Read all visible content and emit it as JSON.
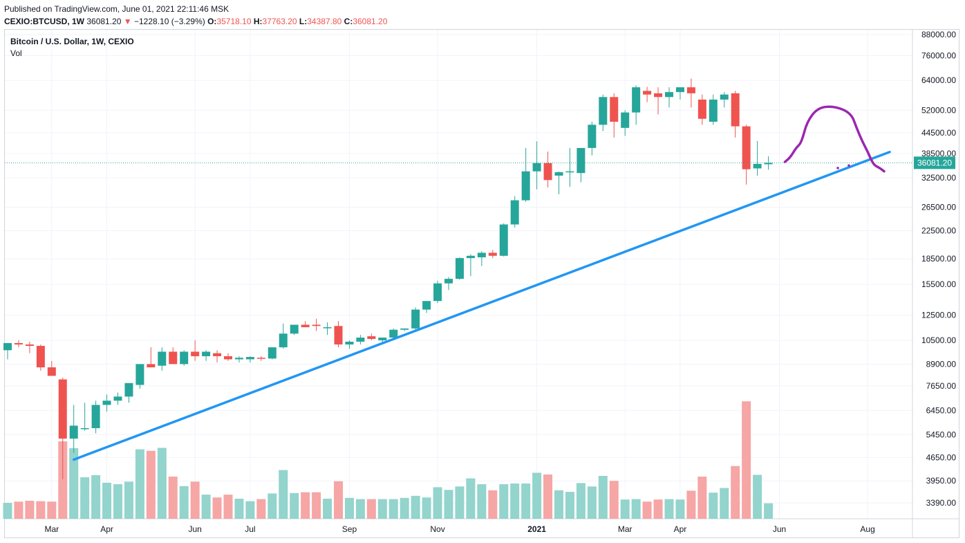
{
  "header": {
    "published": "Published on TradingView.com, June 01, 2021 22:11:46 MSK",
    "symbol": "CEXIO:BTCUSD, 1W",
    "last": "36081.20",
    "change_arrow": "▼",
    "change": "−1228.10 (−3.29%)",
    "o_label": "O:",
    "o_value": "35718.10",
    "h_label": "H:",
    "h_value": "37763.20",
    "l_label": "L:",
    "l_value": "34387.80",
    "c_label": "C:",
    "c_value": "36081.20"
  },
  "legend": {
    "title": "Bitcoin / U.S. Dollar, 1W, CEXIO",
    "volume": "Vol"
  },
  "colors": {
    "up": "#26a69a",
    "down": "#ef5350",
    "up_vol": "#93d4cd",
    "down_vol": "#f5a6a5",
    "trendline": "#2196f3",
    "drawing": "#9c27b0",
    "price_line": "#26a69a",
    "grid": "#f0f3fa"
  },
  "chart_data": {
    "type": "candlestick",
    "scale": "log",
    "y_ticks": [
      "88000.00",
      "76000.00",
      "64000.00",
      "52000.00",
      "44500.00",
      "38500.00",
      "32500.00",
      "26500.00",
      "22500.00",
      "18500.00",
      "15500.00",
      "12500.00",
      "10500.00",
      "8900.00",
      "7650.00",
      "6450.00",
      "5450.00",
      "4650.00",
      "3950.00",
      "3390.00"
    ],
    "x_ticks": [
      {
        "label": "Mar",
        "week": 4,
        "bold": false
      },
      {
        "label": "Apr",
        "week": 9,
        "bold": false
      },
      {
        "label": "Jun",
        "week": 17,
        "bold": false
      },
      {
        "label": "Jul",
        "week": 22,
        "bold": false
      },
      {
        "label": "Sep",
        "week": 31,
        "bold": false
      },
      {
        "label": "Nov",
        "week": 39,
        "bold": false
      },
      {
        "label": "2021",
        "week": 48,
        "bold": true
      },
      {
        "label": "Mar",
        "week": 56,
        "bold": false
      },
      {
        "label": "Apr",
        "week": 61,
        "bold": false
      },
      {
        "label": "Jun",
        "week": 70,
        "bold": false
      },
      {
        "label": "Aug",
        "week": 78,
        "bold": false
      }
    ],
    "last_price_label": "36081.20",
    "last_price": 36081.2,
    "candles": [
      [
        9800,
        10300,
        9200,
        10300,
        3390
      ],
      [
        10300,
        10500,
        10000,
        10200,
        3420
      ],
      [
        10200,
        10400,
        9600,
        10100,
        3440
      ],
      [
        10100,
        10200,
        8500,
        8700,
        3430
      ],
      [
        8700,
        9100,
        8300,
        8200,
        3420
      ],
      [
        8000,
        8100,
        4000,
        5300,
        5200
      ],
      [
        5300,
        6700,
        4800,
        5800,
        4960
      ],
      [
        5700,
        6800,
        5600,
        5700,
        4050
      ],
      [
        5700,
        6900,
        5500,
        6700,
        4110
      ],
      [
        6700,
        7200,
        6400,
        6900,
        3900
      ],
      [
        6900,
        7300,
        6700,
        7100,
        3860
      ],
      [
        7100,
        7600,
        6800,
        7800,
        3930
      ],
      [
        7700,
        8900,
        7500,
        8900,
        4920
      ],
      [
        8900,
        10000,
        8700,
        8700,
        4870
      ],
      [
        8800,
        10000,
        8500,
        9700,
        4970
      ],
      [
        9700,
        10000,
        9300,
        8900,
        4070
      ],
      [
        8900,
        9800,
        8800,
        9700,
        3810
      ],
      [
        9700,
        10500,
        9100,
        9400,
        3930
      ],
      [
        9400,
        9800,
        9100,
        9700,
        3590
      ],
      [
        9600,
        9800,
        9000,
        9400,
        3520
      ],
      [
        9400,
        9600,
        9100,
        9200,
        3590
      ],
      [
        9200,
        9400,
        9000,
        9300,
        3490
      ],
      [
        9200,
        9400,
        9000,
        9350,
        3430
      ],
      [
        9300,
        9400,
        9100,
        9250,
        3480
      ],
      [
        9250,
        10000,
        9200,
        10000,
        3620
      ],
      [
        10000,
        11800,
        9900,
        11000,
        4260
      ],
      [
        11000,
        11700,
        10900,
        11700,
        3630
      ],
      [
        11700,
        12000,
        11500,
        11500,
        3650
      ],
      [
        11700,
        12200,
        11200,
        11600,
        3650
      ],
      [
        11500,
        11900,
        10900,
        11500,
        3490
      ],
      [
        11600,
        12000,
        10000,
        10200,
        3940
      ],
      [
        10200,
        10500,
        9900,
        10400,
        3510
      ],
      [
        10400,
        10900,
        10200,
        10700,
        3480
      ],
      [
        10800,
        11000,
        10500,
        10600,
        3480
      ],
      [
        10500,
        10700,
        10300,
        10700,
        3480
      ],
      [
        10700,
        11400,
        10500,
        11300,
        3480
      ],
      [
        11300,
        11400,
        11200,
        11400,
        3510
      ],
      [
        11400,
        13200,
        11300,
        13000,
        3560
      ],
      [
        13000,
        13800,
        12700,
        13800,
        3520
      ],
      [
        13800,
        15900,
        13600,
        15600,
        3780
      ],
      [
        15600,
        16300,
        14900,
        16100,
        3710
      ],
      [
        16100,
        18700,
        16000,
        18600,
        3800
      ],
      [
        18600,
        19100,
        16400,
        18900,
        4020
      ],
      [
        18700,
        19500,
        17600,
        19300,
        3860
      ],
      [
        19300,
        19700,
        18600,
        18900,
        3700
      ],
      [
        18900,
        23700,
        18800,
        23500,
        3860
      ],
      [
        23500,
        28600,
        23000,
        27800,
        3880
      ],
      [
        27800,
        40000,
        27500,
        34000,
        3880
      ],
      [
        34000,
        41900,
        30000,
        36000,
        4180
      ],
      [
        36000,
        39000,
        30400,
        32000,
        4130
      ],
      [
        33000,
        34000,
        29000,
        33800,
        3700
      ],
      [
        34000,
        40000,
        30500,
        34000,
        3660
      ],
      [
        33600,
        39700,
        31500,
        40000,
        3890
      ],
      [
        40000,
        48000,
        38000,
        47000,
        3800
      ],
      [
        47000,
        58000,
        45000,
        57000,
        4090
      ],
      [
        57000,
        58500,
        43000,
        48000,
        3950
      ],
      [
        46000,
        52000,
        43500,
        51200,
        3470
      ],
      [
        51200,
        61800,
        47000,
        61000,
        3480
      ],
      [
        59500,
        61200,
        55000,
        58000,
        3420
      ],
      [
        58500,
        61000,
        50500,
        57000,
        3470
      ],
      [
        57000,
        61000,
        53000,
        59000,
        3480
      ],
      [
        59000,
        61000,
        56000,
        61000,
        3470
      ],
      [
        61000,
        64800,
        53000,
        58500,
        3690
      ],
      [
        56000,
        58000,
        47000,
        49000,
        4070
      ],
      [
        48000,
        58000,
        47000,
        56000,
        3640
      ],
      [
        56000,
        59000,
        53000,
        58000,
        3760
      ],
      [
        58500,
        59500,
        43000,
        46500,
        4380
      ],
      [
        46500,
        47000,
        31000,
        34500,
        6870
      ],
      [
        34700,
        42000,
        33000,
        35800,
        4120
      ],
      [
        35718.1,
        37763.2,
        34387.8,
        36081.2,
        3380
      ]
    ],
    "trendline": [
      [
        6,
        4580
      ],
      [
        80,
        38900
      ]
    ],
    "freehand_path_points": [
      [
        70.5,
        36300
      ],
      [
        71,
        37500
      ],
      [
        71.5,
        40000
      ],
      [
        72,
        41500
      ],
      [
        72.5,
        48000
      ],
      [
        73.5,
        53000
      ],
      [
        75,
        53500
      ],
      [
        76.5,
        51000
      ],
      [
        77,
        46000
      ],
      [
        77.5,
        42000
      ],
      [
        78,
        39000
      ],
      [
        78.3,
        37000
      ],
      [
        78.6,
        35500
      ],
      [
        79.1,
        34800
      ],
      [
        79.5,
        34000
      ]
    ]
  }
}
